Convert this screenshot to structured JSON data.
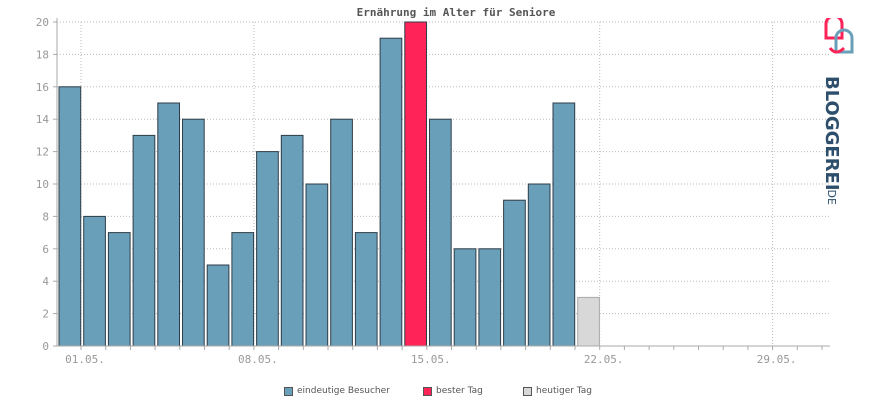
{
  "chart_data": {
    "type": "bar",
    "title": "Ernährung im Alter für Seniore",
    "xlabel": "",
    "ylabel": "",
    "ylim": [
      0,
      20
    ],
    "yticks": [
      0,
      2,
      4,
      6,
      8,
      10,
      12,
      14,
      16,
      18,
      20
    ],
    "xtick_labels": [
      "01.05.",
      "08.05.",
      "15.05.",
      "22.05.",
      "29.05."
    ],
    "xtick_days": [
      1,
      8,
      15,
      22,
      29
    ],
    "days": [
      1,
      2,
      3,
      4,
      5,
      6,
      7,
      8,
      9,
      10,
      11,
      12,
      13,
      14,
      15,
      16,
      17,
      18,
      19,
      20,
      21,
      22
    ],
    "values": [
      16,
      8,
      7,
      13,
      15,
      14,
      5,
      7,
      12,
      13,
      10,
      14,
      7,
      19,
      20,
      14,
      6,
      6,
      9,
      10,
      15,
      3
    ],
    "bar_kind": [
      "visitor",
      "visitor",
      "visitor",
      "visitor",
      "visitor",
      "visitor",
      "visitor",
      "visitor",
      "visitor",
      "visitor",
      "visitor",
      "visitor",
      "visitor",
      "visitor",
      "best",
      "visitor",
      "visitor",
      "visitor",
      "visitor",
      "visitor",
      "visitor",
      "today"
    ],
    "days_in_month": 31,
    "grid": true,
    "legend_position": "bottom"
  },
  "legend": {
    "visitors": "eindeutige Besucher",
    "best": "bester Tag",
    "today": "heutiger Tag"
  },
  "colors": {
    "visitors": "#6a9fba",
    "best": "#ff2358",
    "today": "#d8d8d8",
    "grid": "#bbbbbb",
    "axis": "#aaaaaa",
    "bar_border": "#2e3d47"
  },
  "logo": {
    "brand": "BLOGGEREI",
    "suffix": ".DE",
    "icon": "heart-speech-bubbles-icon"
  }
}
